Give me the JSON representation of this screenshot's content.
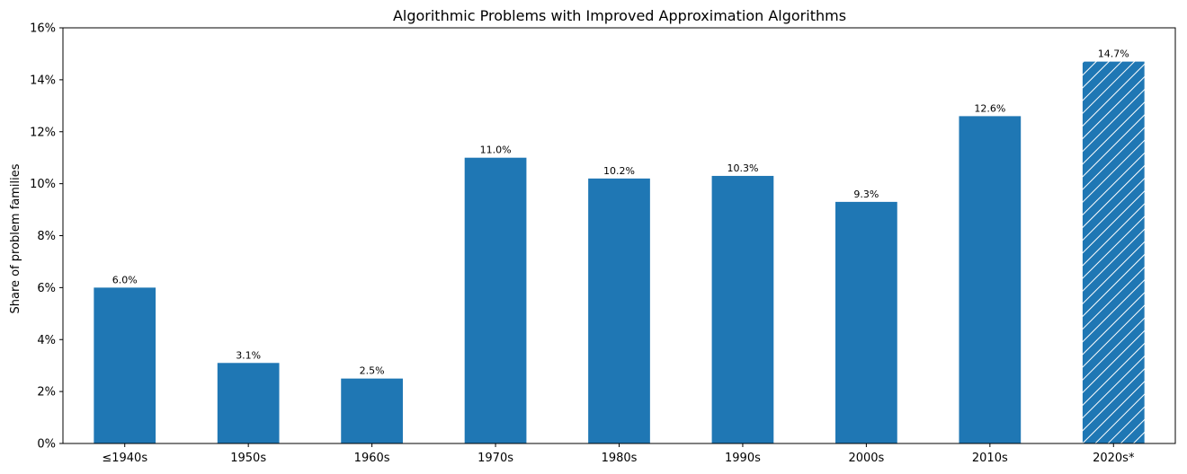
{
  "chart_data": {
    "type": "bar",
    "title": "Algorithmic Problems with Improved Approximation Algorithms",
    "xlabel": "",
    "ylabel": "Share of problem families",
    "categories": [
      "≤1940s",
      "1950s",
      "1960s",
      "1970s",
      "1980s",
      "1990s",
      "2000s",
      "2010s",
      "2020s*"
    ],
    "values": [
      6.0,
      3.1,
      2.5,
      11.0,
      10.2,
      10.3,
      9.3,
      12.6,
      14.7
    ],
    "value_labels": [
      "6.0%",
      "3.1%",
      "2.5%",
      "11.0%",
      "10.2%",
      "10.3%",
      "9.3%",
      "12.6%",
      "14.7%"
    ],
    "hatched": [
      false,
      false,
      false,
      false,
      false,
      false,
      false,
      false,
      true
    ],
    "ylim": [
      0,
      16
    ],
    "yticks": [
      0,
      2,
      4,
      6,
      8,
      10,
      12,
      14,
      16
    ],
    "ytick_labels": [
      "0%",
      "2%",
      "4%",
      "6%",
      "8%",
      "10%",
      "12%",
      "14%",
      "16%"
    ],
    "bar_color": "#1f77b4",
    "grid": false,
    "legend": "none"
  }
}
